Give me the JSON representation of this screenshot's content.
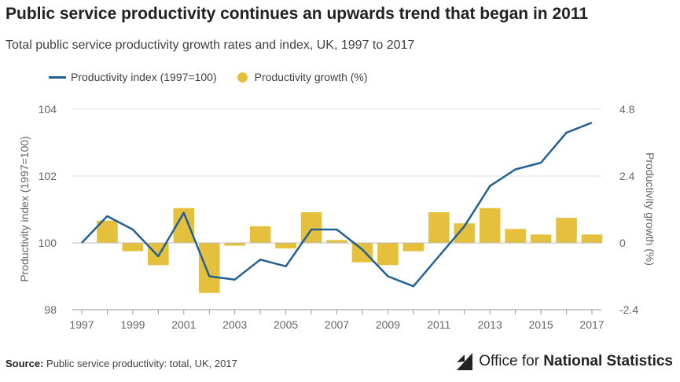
{
  "title": "Public service productivity continues an upwards trend that began in 2011",
  "subtitle": "Total public service productivity growth rates and index, UK, 1997 to 2017",
  "legend": {
    "line_label": "Productivity index (1997=100)",
    "bar_label": "Productivity growth (%)"
  },
  "source": {
    "prefix": "Source:",
    "text": " Public service productivity: total, UK, 2017"
  },
  "logo": {
    "name_regular": "Office for ",
    "name_bold": "National Statistics"
  },
  "colors": {
    "line": "#206095",
    "bar": "#e5c03c",
    "grid": "#dcdcdc",
    "axis_text": "#666666"
  },
  "chart_data": {
    "type": "bar",
    "x": [
      1997,
      1998,
      1999,
      2000,
      2001,
      2002,
      2003,
      2004,
      2005,
      2006,
      2007,
      2008,
      2009,
      2010,
      2011,
      2012,
      2013,
      2014,
      2015,
      2016,
      2017
    ],
    "x_tick_labels": [
      "1997",
      "1999",
      "2001",
      "2003",
      "2005",
      "2007",
      "2009",
      "2011",
      "2013",
      "2015",
      "2017"
    ],
    "series": [
      {
        "name": "Productivity index (1997=100)",
        "type": "line",
        "axis": "left",
        "values": [
          100.0,
          100.8,
          100.4,
          99.6,
          100.9,
          99.0,
          98.9,
          99.5,
          99.3,
          100.4,
          100.4,
          99.8,
          99.0,
          98.7,
          99.6,
          100.5,
          101.7,
          102.2,
          102.4,
          103.3,
          103.6
        ]
      },
      {
        "name": "Productivity growth (%)",
        "type": "bar",
        "axis": "right",
        "values": [
          null,
          0.8,
          -0.3,
          -0.8,
          1.25,
          -1.8,
          -0.1,
          0.6,
          -0.2,
          1.1,
          0.1,
          -0.7,
          -0.8,
          -0.3,
          1.1,
          0.7,
          1.25,
          0.5,
          0.3,
          0.9,
          0.3
        ]
      }
    ],
    "y_left": {
      "label": "Productivity index (1997=100)",
      "lim": [
        98,
        104
      ],
      "ticks": [
        "98",
        "100",
        "102",
        "104"
      ]
    },
    "y_right": {
      "label": "Productivity growth (%)",
      "lim": [
        -2.4,
        4.8
      ],
      "ticks": [
        "-2.4",
        "0",
        "2.4",
        "4.8"
      ]
    },
    "grid": true,
    "legend_position": "top-left"
  }
}
